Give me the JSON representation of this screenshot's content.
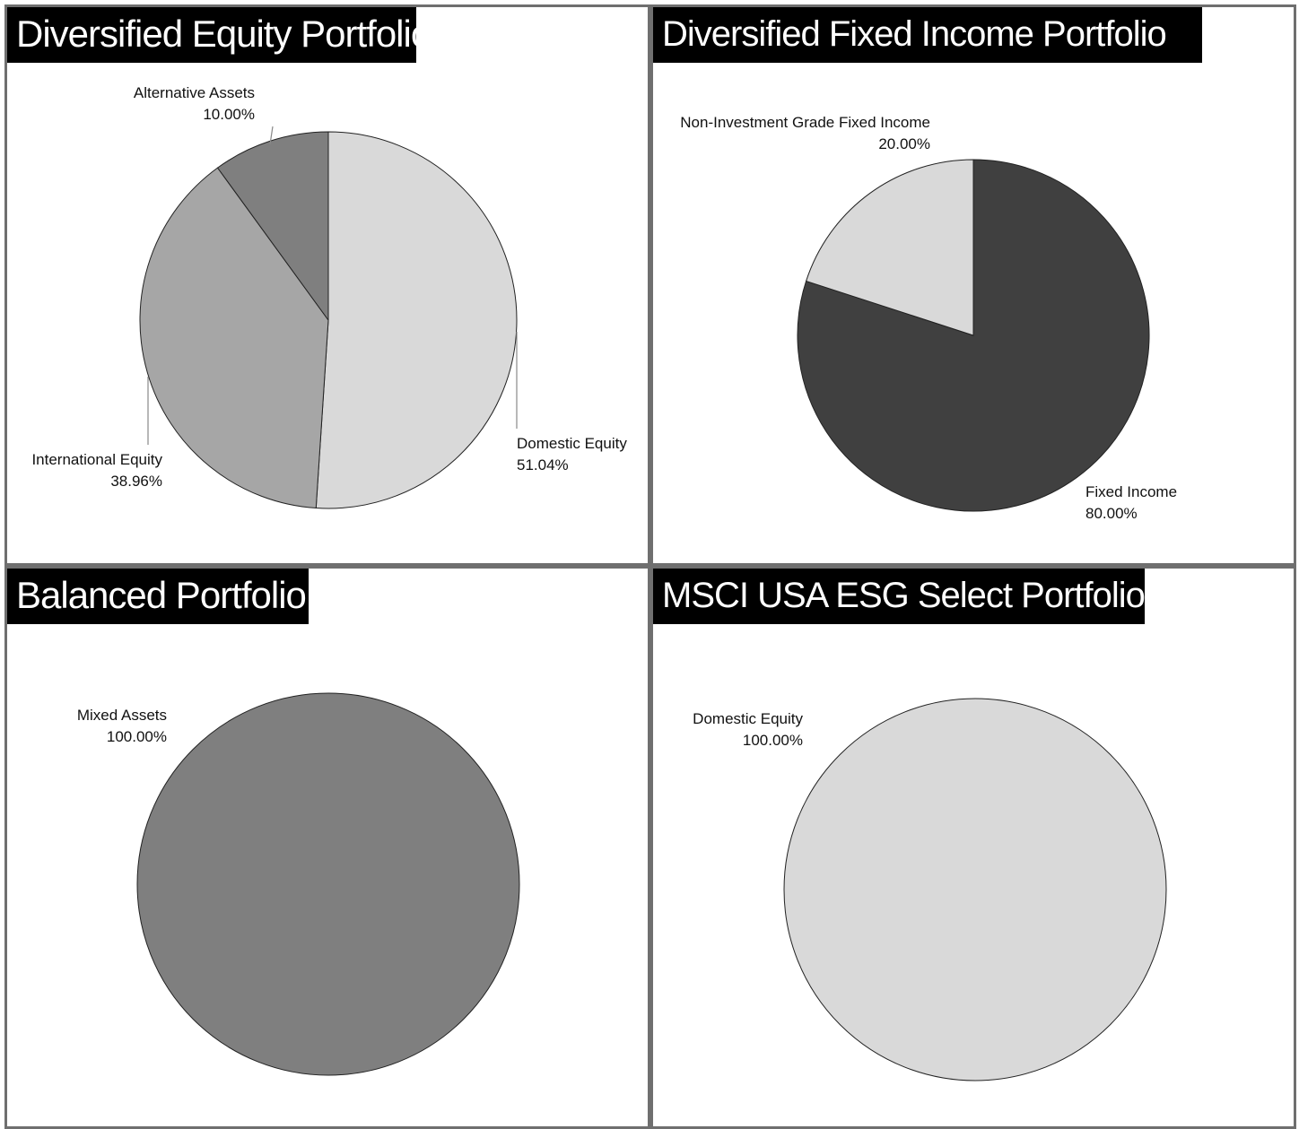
{
  "chart_data": [
    {
      "type": "pie",
      "title": "Diversified Equity Portfolio",
      "slices": [
        {
          "label": "Domestic Equity",
          "value": 51.04,
          "value_label": "51.04%",
          "color": "#d9d9d9"
        },
        {
          "label": "International Equity",
          "value": 38.96,
          "value_label": "38.96%",
          "color": "#a6a6a6"
        },
        {
          "label": "Alternative Assets",
          "value": 10.0,
          "value_label": "10.00%",
          "color": "#7f7f7f"
        }
      ]
    },
    {
      "type": "pie",
      "title": "Diversified Fixed Income Portfolio",
      "slices": [
        {
          "label": "Fixed Income",
          "value": 80.0,
          "value_label": "80.00%",
          "color": "#404040"
        },
        {
          "label": "Non-Investment Grade Fixed Income",
          "value": 20.0,
          "value_label": "20.00%",
          "color": "#d9d9d9"
        }
      ]
    },
    {
      "type": "pie",
      "title": "Balanced Portfolio",
      "slices": [
        {
          "label": "Mixed Assets",
          "value": 100.0,
          "value_label": "100.00%",
          "color": "#7f7f7f"
        }
      ]
    },
    {
      "type": "pie",
      "title": "MSCI USA ESG Select Portfolio",
      "slices": [
        {
          "label": "Domestic Equity",
          "value": 100.0,
          "value_label": "100.00%",
          "color": "#d9d9d9"
        }
      ]
    }
  ]
}
